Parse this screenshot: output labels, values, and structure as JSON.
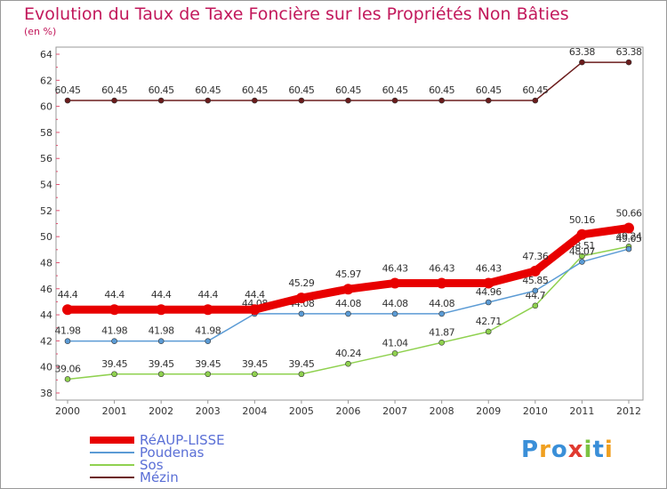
{
  "title": "Evolution du Taux de Taxe Foncière sur les Propriétés Non Bâties",
  "unit": "(en %)",
  "logo": "Proxiti",
  "chart_data": {
    "type": "line",
    "title": "Evolution du Taux de Taxe Foncière sur les Propriétés Non Bâties",
    "ylabel": "(en %)",
    "x": [
      2000,
      2001,
      2002,
      2003,
      2004,
      2005,
      2006,
      2007,
      2008,
      2009,
      2010,
      2011,
      2012
    ],
    "ylim": [
      38,
      64
    ],
    "yticks": [
      38,
      40,
      42,
      44,
      46,
      48,
      50,
      52,
      54,
      56,
      58,
      60,
      62,
      64
    ],
    "series": [
      {
        "name": "Mézin",
        "color": "#6b1c1c",
        "values": [
          60.45,
          60.45,
          60.45,
          60.45,
          60.45,
          60.45,
          60.45,
          60.45,
          60.45,
          60.45,
          60.45,
          63.38,
          63.38
        ],
        "labels": [
          "60.45",
          "60.45",
          "60.45",
          "60.45",
          "60.45",
          "60.45",
          "60.45",
          "60.45",
          "60.45",
          "60.45",
          "60.45",
          "63.38",
          "63.38"
        ]
      },
      {
        "name": "Sos",
        "color": "#8fd14f",
        "values": [
          39.06,
          39.45,
          39.45,
          39.45,
          39.45,
          39.45,
          40.24,
          41.04,
          41.87,
          42.71,
          44.7,
          48.51,
          49.24
        ],
        "labels": [
          "39.06",
          "39.45",
          "39.45",
          "39.45",
          "39.45",
          "39.45",
          "40.24",
          "41.04",
          "41.87",
          "42.71",
          "44.7",
          "48.51",
          "49.24"
        ]
      },
      {
        "name": "Poudenas",
        "color": "#5b9bd5",
        "values": [
          41.98,
          41.98,
          41.98,
          41.98,
          44.08,
          44.08,
          44.08,
          44.08,
          44.08,
          44.96,
          45.85,
          48.07,
          49.05
        ],
        "labels": [
          "41.98",
          "41.98",
          "41.98",
          "41.98",
          "44.08",
          "44.08",
          "44.08",
          "44.08",
          "44.08",
          "44.96",
          "45.85",
          "48.07",
          "49.05"
        ]
      },
      {
        "name": "RéAUP-LISSE",
        "color": "#e80000",
        "values": [
          44.4,
          44.4,
          44.4,
          44.4,
          44.4,
          45.29,
          45.97,
          46.43,
          46.43,
          46.43,
          47.36,
          50.16,
          50.66
        ],
        "labels": [
          "44.4",
          "44.4",
          "44.4",
          "44.4",
          "44.4",
          "45.29",
          "45.97",
          "46.43",
          "46.43",
          "46.43",
          "47.36",
          "50.16",
          "50.66"
        ]
      }
    ],
    "legend": [
      "RéAUP-LISSE",
      "Poudenas",
      "Sos",
      "Mézin"
    ]
  }
}
